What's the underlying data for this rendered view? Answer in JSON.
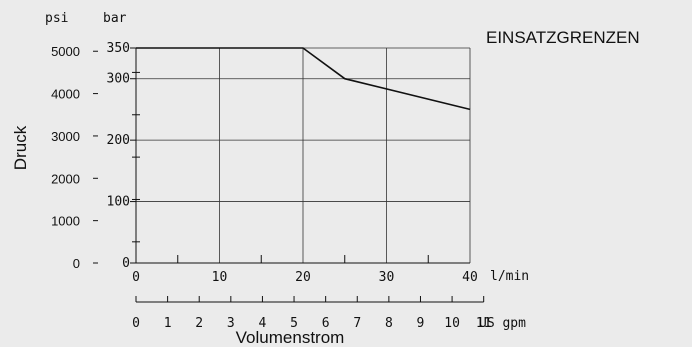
{
  "chart_data": {
    "type": "line",
    "title": "EINSATZGRENZEN",
    "ylabel": "Druck",
    "xlabel": "Volumenstrom",
    "x_unit_primary": "l/min",
    "x_unit_secondary": "US gpm",
    "y_unit_primary": "bar",
    "y_unit_secondary": "psi",
    "xlim": [
      0,
      40
    ],
    "ylim": [
      0,
      350
    ],
    "grid": true,
    "x_ticks_lmin": [
      "0",
      "10",
      "20",
      "30",
      "40"
    ],
    "x_ticks_gpm": [
      "0",
      "1",
      "2",
      "3",
      "4",
      "5",
      "6",
      "7",
      "8",
      "9",
      "10",
      "11"
    ],
    "y_ticks_bar": [
      "0",
      "100",
      "200",
      "300",
      "350"
    ],
    "y_ticks_psi": [
      "0",
      "1000",
      "2000",
      "3000",
      "4000",
      "5000"
    ],
    "series": [
      {
        "x": [
          0,
          20,
          25,
          40
        ],
        "y": [
          350,
          350,
          300,
          250
        ]
      }
    ],
    "colors": {
      "line": "#111111",
      "grid": "#333333",
      "background": "#ebebeb"
    }
  }
}
